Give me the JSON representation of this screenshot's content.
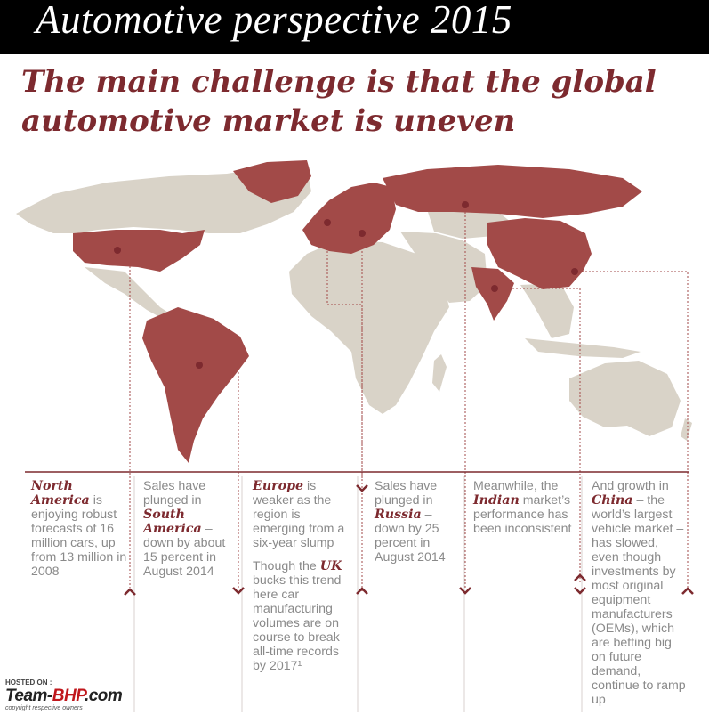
{
  "header": {
    "title": "Automotive perspective 2015"
  },
  "headline": {
    "line1": "The main challenge is that the global",
    "line2": "automotive market is uneven"
  },
  "columns": {
    "north_america": {
      "hl": "North America",
      "rest": " is enjoying robust forecasts of 16 million cars, up from 13 million in 2008"
    },
    "south_america": {
      "pre": "Sales have plunged in ",
      "hl": "South America",
      "rest": " – down by about 15 percent in August 2014"
    },
    "europe": {
      "hl": "Europe",
      "rest": " is weaker as the region is emerging from a six-year slump",
      "p2_pre": "Though the ",
      "p2_hl": "UK",
      "p2_rest": " bucks this trend – here car manufacturing volumes are on course to break all-time records by 2017¹"
    },
    "russia": {
      "pre": "Sales have plunged in ",
      "hl": "Russia",
      "rest": " – down by 25 percent in August 2014"
    },
    "india": {
      "pre": "Meanwhile, the ",
      "hl": "Indian",
      "rest": " market’s performance has been inconsistent"
    },
    "china": {
      "pre": "And growth in ",
      "hl": "China",
      "rest": " – the world’s largest vehicle market – has slowed, even though investments by most original equipment manufacturers (OEMs), which are betting big on future demand, continue to ramp up"
    }
  },
  "watermark": {
    "hosted": "HOSTED ON :",
    "brand_a": "Team-",
    "brand_b": "BHP",
    "brand_c": ".com",
    "copyright": "copyright respective owners"
  },
  "colors": {
    "highlight": "#a24a48",
    "land": "#d9d3c8",
    "accent": "#7d2a2f"
  }
}
